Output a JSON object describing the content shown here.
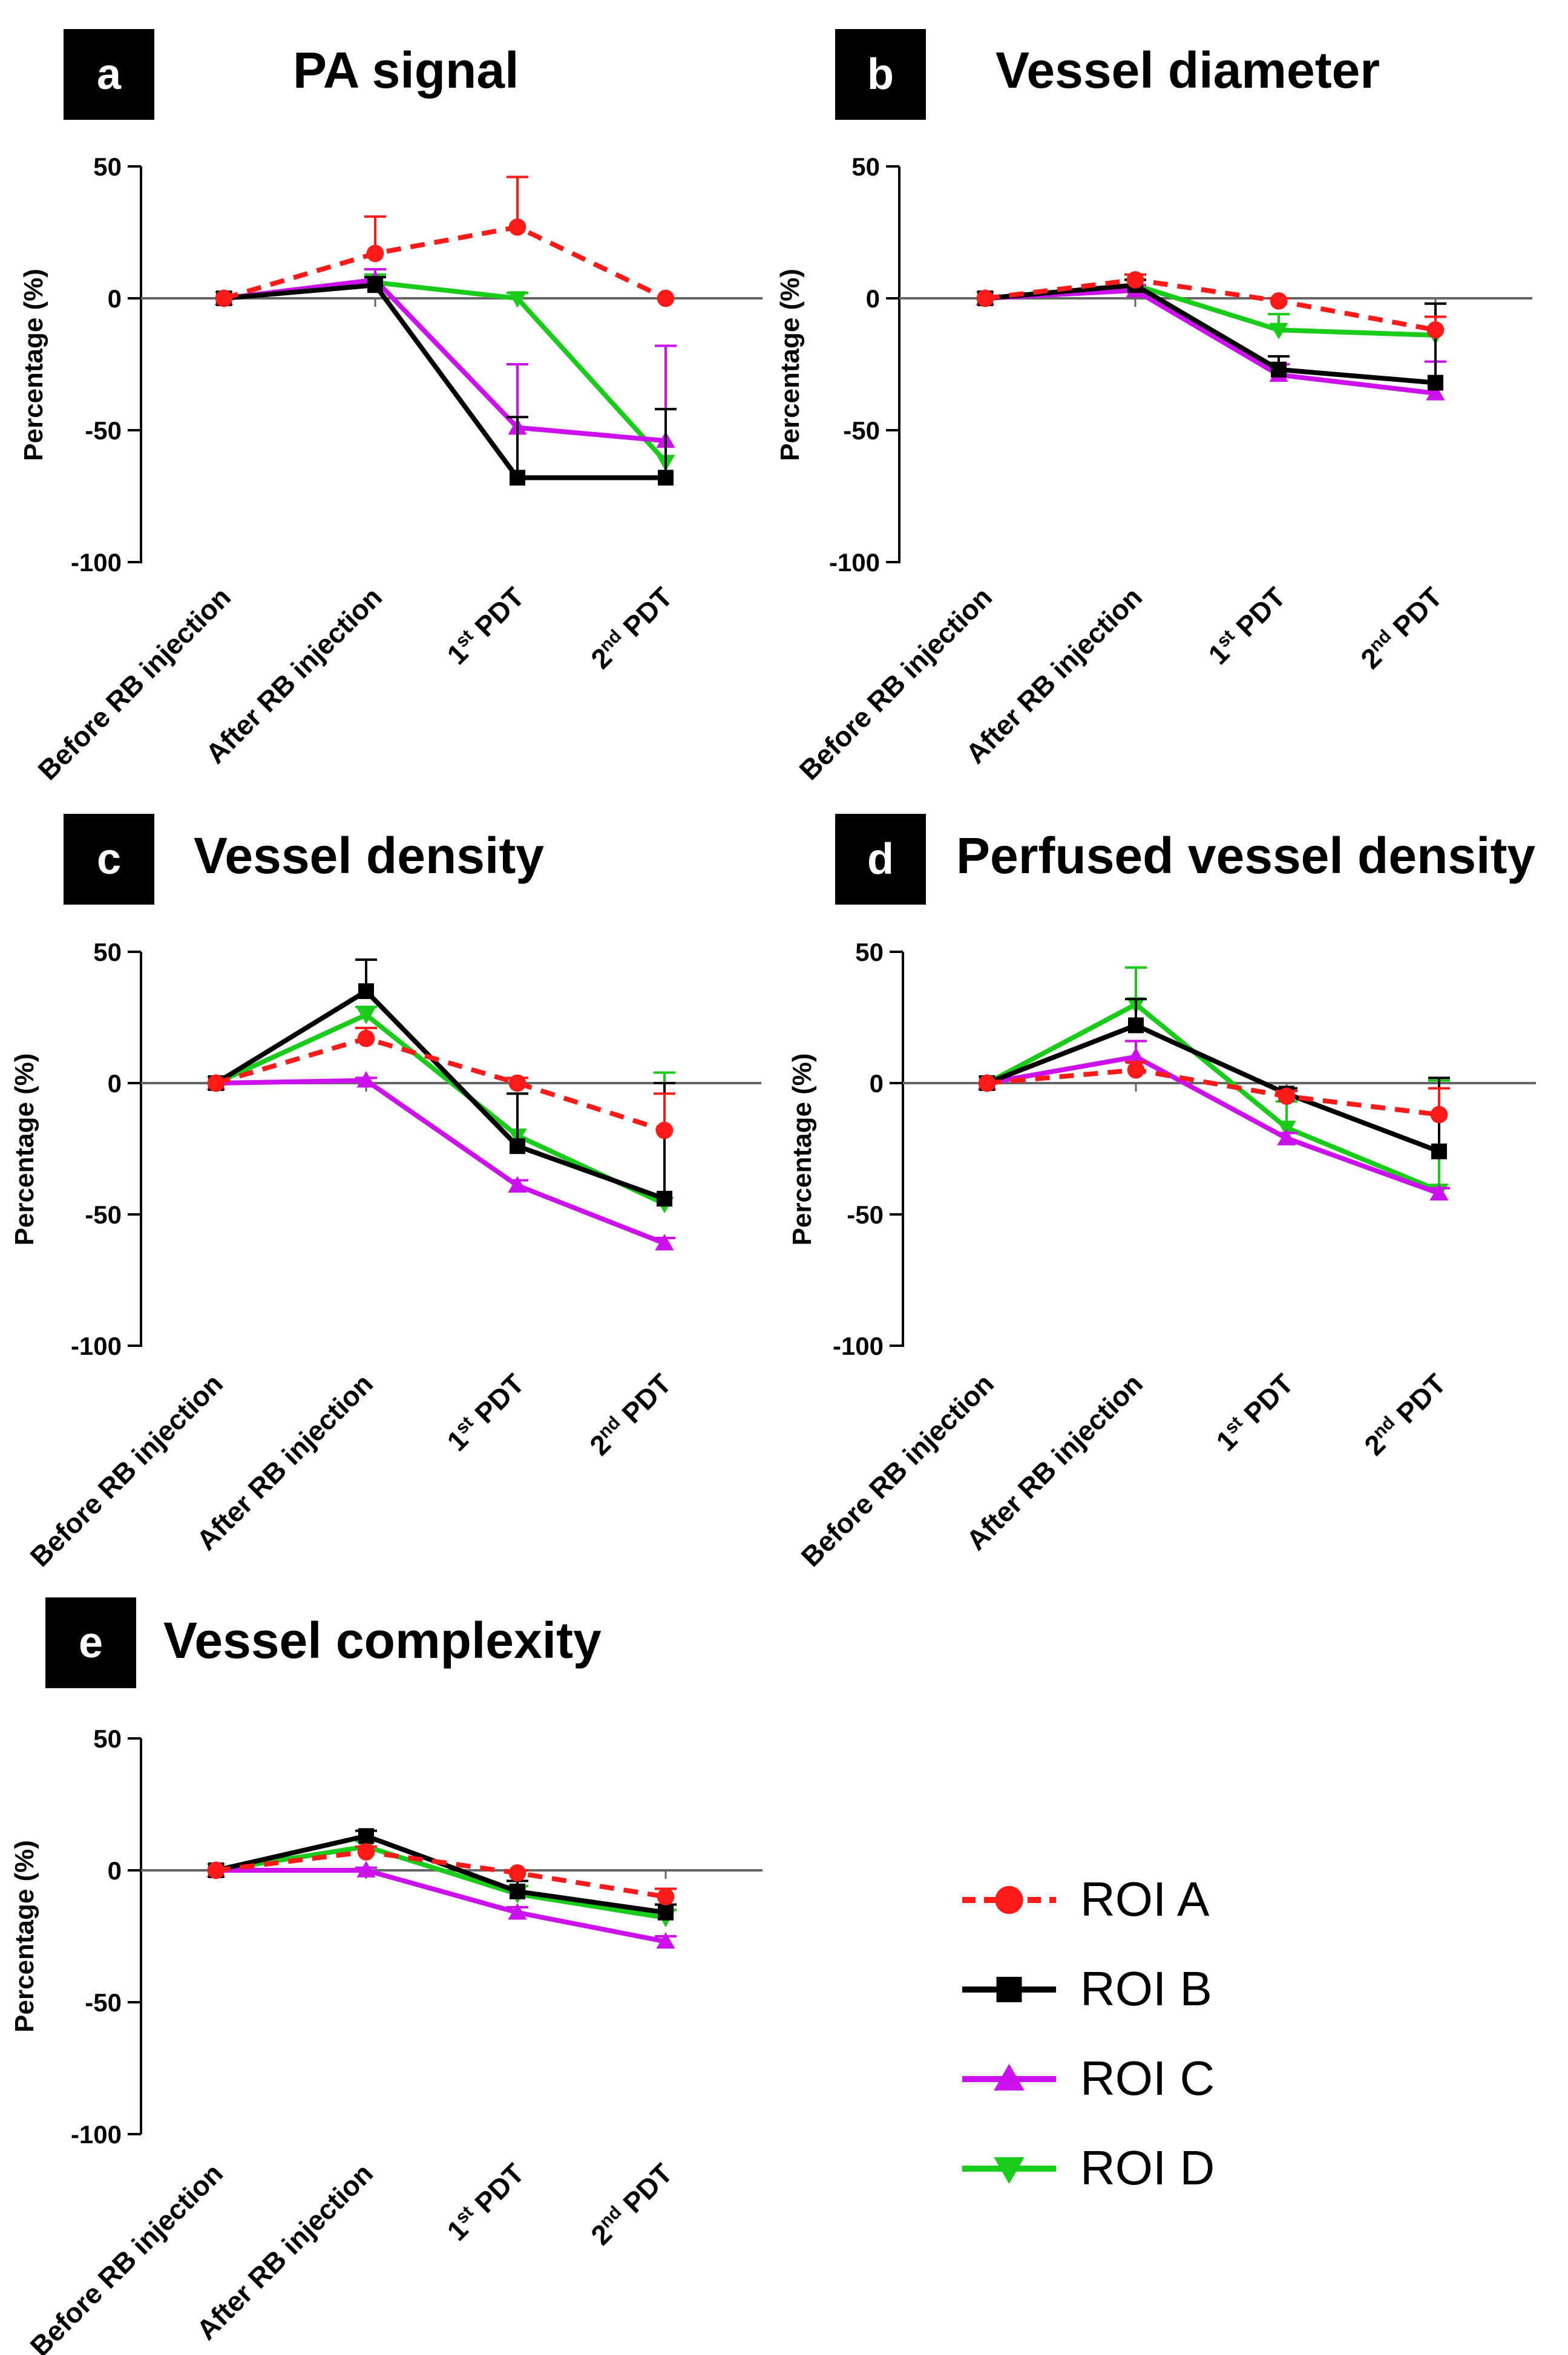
{
  "figure": {
    "legend": {
      "entries": [
        {
          "label": "ROI A",
          "color": "#ff1a1a",
          "marker": "circle",
          "dashed": true
        },
        {
          "label": "ROI B",
          "color": "#000000",
          "marker": "square",
          "dashed": false
        },
        {
          "label": "ROI C",
          "color": "#cc11ee",
          "marker": "triangle-up",
          "dashed": false
        },
        {
          "label": "ROI D",
          "color": "#19cc19",
          "marker": "triangle-down",
          "dashed": false
        }
      ]
    }
  },
  "chart_data": [
    {
      "panel": "a",
      "title": "PA signal",
      "type": "line",
      "ylabel": "Percentage (%)",
      "ylim": [
        -100,
        50
      ],
      "yticks": [
        "50",
        "0",
        "-50",
        "-100"
      ],
      "categories": [
        "Before RB injection",
        "After RB injection",
        "1st PDT",
        "2nd PDT"
      ],
      "series": [
        {
          "name": "ROI A",
          "values": [
            0,
            17,
            27,
            0
          ],
          "errors": [
            0,
            14,
            19,
            0
          ]
        },
        {
          "name": "ROI B",
          "values": [
            0,
            5,
            -68,
            -68
          ],
          "errors": [
            0,
            3,
            23,
            26
          ]
        },
        {
          "name": "ROI C",
          "values": [
            0,
            7,
            -49,
            -54
          ],
          "errors": [
            0,
            4,
            24,
            36
          ]
        },
        {
          "name": "ROI D",
          "values": [
            0,
            6,
            0,
            -62
          ],
          "errors": [
            0,
            3,
            2,
            20
          ]
        }
      ]
    },
    {
      "panel": "b",
      "title": "Vessel diameter",
      "type": "line",
      "ylabel": "Percentage (%)",
      "ylim": [
        -100,
        50
      ],
      "yticks": [
        "50",
        "0",
        "-50",
        "-100"
      ],
      "categories": [
        "Before RB injection",
        "After RB injection",
        "1st PDT",
        "2nd PDT"
      ],
      "series": [
        {
          "name": "ROI A",
          "values": [
            0,
            7,
            -1,
            -12
          ],
          "errors": [
            0,
            2,
            1,
            5
          ]
        },
        {
          "name": "ROI B",
          "values": [
            0,
            5,
            -27,
            -32
          ],
          "errors": [
            0,
            2,
            5,
            30
          ]
        },
        {
          "name": "ROI C",
          "values": [
            0,
            3,
            -29,
            -36
          ],
          "errors": [
            0,
            2,
            4,
            12
          ]
        },
        {
          "name": "ROI D",
          "values": [
            0,
            5,
            -12,
            -14
          ],
          "errors": [
            0,
            2,
            6,
            12
          ]
        }
      ]
    },
    {
      "panel": "c",
      "title": "Vessel density",
      "type": "line",
      "ylabel": "Percentage (%)",
      "ylim": [
        -100,
        50
      ],
      "yticks": [
        "50",
        "0",
        "-50",
        "-100"
      ],
      "categories": [
        "Before RB injection",
        "After RB injection",
        "1st PDT",
        "2nd PDT"
      ],
      "series": [
        {
          "name": "ROI A",
          "values": [
            0,
            17,
            0,
            -18
          ],
          "errors": [
            0,
            4,
            2,
            14
          ]
        },
        {
          "name": "ROI B",
          "values": [
            0,
            35,
            -24,
            -44
          ],
          "errors": [
            0,
            12,
            20,
            44
          ]
        },
        {
          "name": "ROI C",
          "values": [
            0,
            1,
            -39,
            -61
          ],
          "errors": [
            0,
            1,
            2,
            2
          ]
        },
        {
          "name": "ROI D",
          "values": [
            0,
            26,
            -20,
            -46
          ],
          "errors": [
            0,
            3,
            16,
            50
          ]
        }
      ]
    },
    {
      "panel": "d",
      "title": "Perfused vessel density",
      "type": "line",
      "ylabel": "Percentage (%)",
      "ylim": [
        -100,
        50
      ],
      "yticks": [
        "50",
        "0",
        "-50",
        "-100"
      ],
      "categories": [
        "Before RB injection",
        "After RB injection",
        "1st PDT",
        "2nd PDT"
      ],
      "series": [
        {
          "name": "ROI A",
          "values": [
            0,
            5,
            -5,
            -12
          ],
          "errors": [
            0,
            3,
            2,
            10
          ]
        },
        {
          "name": "ROI B",
          "values": [
            0,
            22,
            -4,
            -26
          ],
          "errors": [
            0,
            10,
            2,
            28
          ]
        },
        {
          "name": "ROI C",
          "values": [
            0,
            10,
            -21,
            -42
          ],
          "errors": [
            0,
            6,
            2,
            2
          ]
        },
        {
          "name": "ROI D",
          "values": [
            0,
            30,
            -17,
            -41
          ],
          "errors": [
            0,
            14,
            10,
            42
          ]
        }
      ]
    },
    {
      "panel": "e",
      "title": "Vessel complexity",
      "type": "line",
      "ylabel": "Percentage (%)",
      "ylim": [
        -100,
        50
      ],
      "yticks": [
        "50",
        "0",
        "-50",
        "-100"
      ],
      "categories": [
        "Before RB injection",
        "After RB injection",
        "1st PDT",
        "2nd PDT"
      ],
      "series": [
        {
          "name": "ROI A",
          "values": [
            0,
            7,
            -1,
            -10
          ],
          "errors": [
            0,
            2,
            1,
            3
          ]
        },
        {
          "name": "ROI B",
          "values": [
            0,
            13,
            -8,
            -16
          ],
          "errors": [
            0,
            2,
            4,
            3
          ]
        },
        {
          "name": "ROI C",
          "values": [
            0,
            0,
            -16,
            -27
          ],
          "errors": [
            0,
            1,
            2,
            2
          ]
        },
        {
          "name": "ROI D",
          "values": [
            0,
            9,
            -9,
            -18
          ],
          "errors": [
            0,
            2,
            3,
            3
          ]
        }
      ]
    }
  ]
}
